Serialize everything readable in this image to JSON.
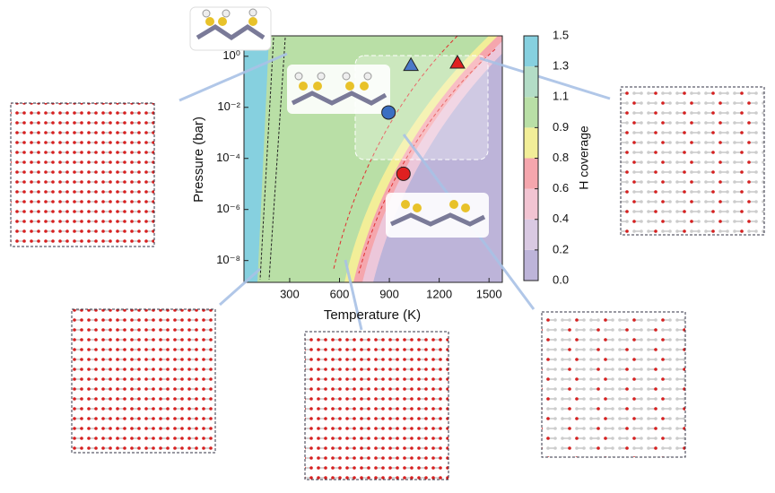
{
  "chart_data": {
    "type": "phase-diagram",
    "xlabel": "Temperature (K)",
    "ylabel": "Pressure (bar)",
    "xlim": [
      25,
      1580
    ],
    "xticks": [
      300,
      600,
      900,
      1200,
      1500
    ],
    "ylim": [
      1.4e-09,
      6.3
    ],
    "yscale": "log",
    "yticks": [
      {
        "value": 1,
        "label": "10⁰"
      },
      {
        "value": 0.01,
        "label": "10⁻²"
      },
      {
        "value": 0.0001,
        "label": "10⁻⁴"
      },
      {
        "value": 1e-06,
        "label": "10⁻⁶"
      },
      {
        "value": 1e-08,
        "label": "10⁻⁸"
      }
    ],
    "colorbar": {
      "label": "H coverage",
      "ticks": [
        {
          "value": 0,
          "label": "0.0"
        },
        0.2,
        0.4,
        0.6,
        0.8,
        0.9,
        1.1,
        1.3,
        1.5
      ],
      "colors": [
        "#bdb4d9",
        "#d9c9e2",
        "#f2c4d2",
        "#f5a6ad",
        "#f2ee98",
        "#b9dfa6",
        "#b3dcc6",
        "#86d0df"
      ]
    },
    "markers": [
      {
        "shape": "circle",
        "color": "#3b6fc2",
        "x": 895,
        "y": 0.0063
      },
      {
        "shape": "circle",
        "color": "#e02020",
        "x": 985,
        "y": 2.5e-05
      },
      {
        "shape": "triangle",
        "color": "#4a78c8",
        "x": 1030,
        "y": 0.45
      },
      {
        "shape": "triangle",
        "color": "#e02020",
        "x": 1310,
        "y": 0.56
      }
    ]
  }
}
